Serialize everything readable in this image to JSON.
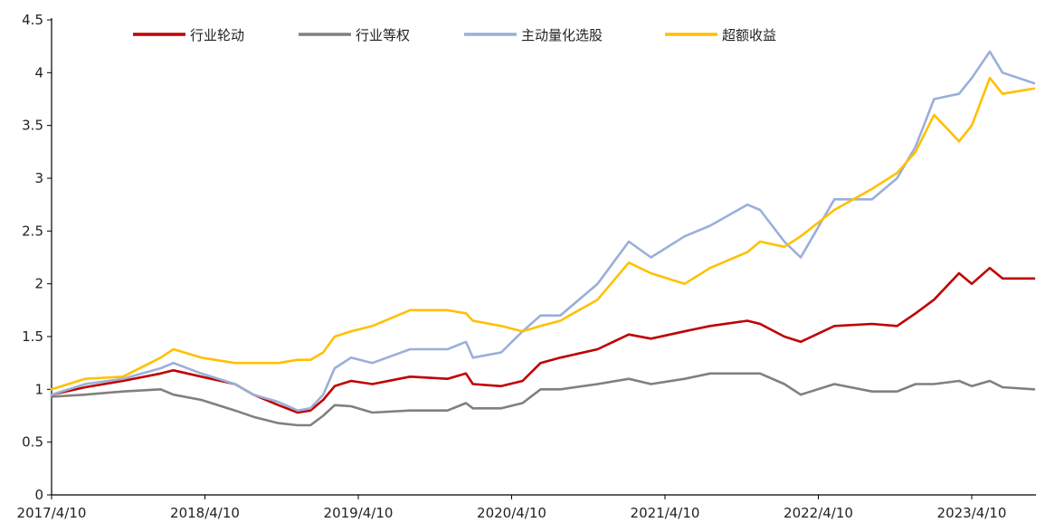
{
  "chart_data": {
    "type": "line",
    "title": "",
    "xlabel": "",
    "ylabel": "",
    "ylim": [
      0,
      4.5
    ],
    "y_ticks": [
      "0",
      "0.5",
      "1",
      "1.5",
      "2",
      "2.5",
      "3",
      "3.5",
      "4",
      "4.5"
    ],
    "x_tick_labels": [
      "2017/4/10",
      "2018/4/10",
      "2019/4/10",
      "2020/4/10",
      "2021/4/10",
      "2022/4/10",
      "2023/4/10"
    ],
    "x_range": [
      "2017-04-10",
      "2023-10-31"
    ],
    "grid": false,
    "legend_position": "top",
    "series": [
      {
        "name": "行业轮动",
        "color": "#C00000",
        "points": [
          [
            "2017-04-10",
            0.95
          ],
          [
            "2017-07-01",
            1.02
          ],
          [
            "2017-10-01",
            1.08
          ],
          [
            "2018-01-01",
            1.15
          ],
          [
            "2018-02-01",
            1.18
          ],
          [
            "2018-04-10",
            1.12
          ],
          [
            "2018-07-01",
            1.05
          ],
          [
            "2018-08-15",
            0.95
          ],
          [
            "2018-10-15",
            0.85
          ],
          [
            "2018-12-01",
            0.78
          ],
          [
            "2019-01-01",
            0.8
          ],
          [
            "2019-02-01",
            0.9
          ],
          [
            "2019-03-01",
            1.03
          ],
          [
            "2019-04-10",
            1.08
          ],
          [
            "2019-06-01",
            1.05
          ],
          [
            "2019-09-01",
            1.12
          ],
          [
            "2019-12-01",
            1.1
          ],
          [
            "2020-01-15",
            1.15
          ],
          [
            "2020-02-01",
            1.05
          ],
          [
            "2020-04-10",
            1.03
          ],
          [
            "2020-06-01",
            1.08
          ],
          [
            "2020-07-15",
            1.25
          ],
          [
            "2020-09-01",
            1.3
          ],
          [
            "2020-12-01",
            1.38
          ],
          [
            "2021-02-15",
            1.52
          ],
          [
            "2021-04-10",
            1.48
          ],
          [
            "2021-07-01",
            1.55
          ],
          [
            "2021-09-01",
            1.6
          ],
          [
            "2021-12-01",
            1.65
          ],
          [
            "2022-01-01",
            1.62
          ],
          [
            "2022-03-01",
            1.5
          ],
          [
            "2022-04-10",
            1.45
          ],
          [
            "2022-07-01",
            1.6
          ],
          [
            "2022-10-01",
            1.62
          ],
          [
            "2022-12-01",
            1.6
          ],
          [
            "2023-01-15",
            1.72
          ],
          [
            "2023-03-01",
            1.85
          ],
          [
            "2023-05-01",
            2.1
          ],
          [
            "2023-06-01",
            2.0
          ],
          [
            "2023-07-15",
            2.15
          ],
          [
            "2023-08-15",
            2.05
          ],
          [
            "2023-10-31",
            2.05
          ]
        ]
      },
      {
        "name": "行业等权",
        "color": "#808080",
        "points": [
          [
            "2017-04-10",
            0.93
          ],
          [
            "2017-07-01",
            0.95
          ],
          [
            "2017-10-01",
            0.98
          ],
          [
            "2018-01-01",
            1.0
          ],
          [
            "2018-02-01",
            0.95
          ],
          [
            "2018-04-10",
            0.9
          ],
          [
            "2018-07-01",
            0.8
          ],
          [
            "2018-08-15",
            0.74
          ],
          [
            "2018-10-15",
            0.68
          ],
          [
            "2018-12-01",
            0.66
          ],
          [
            "2019-01-01",
            0.66
          ],
          [
            "2019-02-01",
            0.75
          ],
          [
            "2019-03-01",
            0.85
          ],
          [
            "2019-04-10",
            0.84
          ],
          [
            "2019-06-01",
            0.78
          ],
          [
            "2019-09-01",
            0.8
          ],
          [
            "2019-12-01",
            0.8
          ],
          [
            "2020-01-15",
            0.87
          ],
          [
            "2020-02-01",
            0.82
          ],
          [
            "2020-04-10",
            0.82
          ],
          [
            "2020-06-01",
            0.87
          ],
          [
            "2020-07-15",
            1.0
          ],
          [
            "2020-09-01",
            1.0
          ],
          [
            "2020-12-01",
            1.05
          ],
          [
            "2021-02-15",
            1.1
          ],
          [
            "2021-04-10",
            1.05
          ],
          [
            "2021-07-01",
            1.1
          ],
          [
            "2021-09-01",
            1.15
          ],
          [
            "2021-12-01",
            1.15
          ],
          [
            "2022-01-01",
            1.15
          ],
          [
            "2022-03-01",
            1.05
          ],
          [
            "2022-04-10",
            0.95
          ],
          [
            "2022-07-01",
            1.05
          ],
          [
            "2022-10-01",
            0.98
          ],
          [
            "2022-12-01",
            0.98
          ],
          [
            "2023-01-15",
            1.05
          ],
          [
            "2023-03-01",
            1.05
          ],
          [
            "2023-05-01",
            1.08
          ],
          [
            "2023-06-01",
            1.03
          ],
          [
            "2023-07-15",
            1.08
          ],
          [
            "2023-08-15",
            1.02
          ],
          [
            "2023-10-31",
            1.0
          ]
        ]
      },
      {
        "name": "主动量化选股",
        "color": "#9AAFD9",
        "points": [
          [
            "2017-04-10",
            0.95
          ],
          [
            "2017-07-01",
            1.05
          ],
          [
            "2017-10-01",
            1.1
          ],
          [
            "2018-01-01",
            1.2
          ],
          [
            "2018-02-01",
            1.25
          ],
          [
            "2018-04-10",
            1.15
          ],
          [
            "2018-07-01",
            1.05
          ],
          [
            "2018-08-15",
            0.95
          ],
          [
            "2018-10-15",
            0.88
          ],
          [
            "2018-12-01",
            0.8
          ],
          [
            "2019-01-01",
            0.82
          ],
          [
            "2019-02-01",
            0.95
          ],
          [
            "2019-03-01",
            1.2
          ],
          [
            "2019-04-10",
            1.3
          ],
          [
            "2019-06-01",
            1.25
          ],
          [
            "2019-09-01",
            1.38
          ],
          [
            "2019-12-01",
            1.38
          ],
          [
            "2020-01-15",
            1.45
          ],
          [
            "2020-02-01",
            1.3
          ],
          [
            "2020-04-10",
            1.35
          ],
          [
            "2020-06-01",
            1.55
          ],
          [
            "2020-07-15",
            1.7
          ],
          [
            "2020-09-01",
            1.7
          ],
          [
            "2020-12-01",
            2.0
          ],
          [
            "2021-02-15",
            2.4
          ],
          [
            "2021-04-10",
            2.25
          ],
          [
            "2021-07-01",
            2.45
          ],
          [
            "2021-09-01",
            2.55
          ],
          [
            "2021-12-01",
            2.75
          ],
          [
            "2022-01-01",
            2.7
          ],
          [
            "2022-03-01",
            2.4
          ],
          [
            "2022-04-10",
            2.25
          ],
          [
            "2022-07-01",
            2.8
          ],
          [
            "2022-10-01",
            2.8
          ],
          [
            "2022-12-01",
            3.0
          ],
          [
            "2023-01-15",
            3.3
          ],
          [
            "2023-03-01",
            3.75
          ],
          [
            "2023-05-01",
            3.8
          ],
          [
            "2023-06-01",
            3.95
          ],
          [
            "2023-07-15",
            4.2
          ],
          [
            "2023-08-15",
            4.0
          ],
          [
            "2023-10-31",
            3.9
          ]
        ]
      },
      {
        "name": "超额收益",
        "color": "#FFC000",
        "points": [
          [
            "2017-04-10",
            1.0
          ],
          [
            "2017-07-01",
            1.1
          ],
          [
            "2017-10-01",
            1.12
          ],
          [
            "2018-01-01",
            1.3
          ],
          [
            "2018-02-01",
            1.38
          ],
          [
            "2018-04-10",
            1.3
          ],
          [
            "2018-07-01",
            1.25
          ],
          [
            "2018-08-15",
            1.25
          ],
          [
            "2018-10-15",
            1.25
          ],
          [
            "2018-12-01",
            1.28
          ],
          [
            "2019-01-01",
            1.28
          ],
          [
            "2019-02-01",
            1.35
          ],
          [
            "2019-03-01",
            1.5
          ],
          [
            "2019-04-10",
            1.55
          ],
          [
            "2019-06-01",
            1.6
          ],
          [
            "2019-09-01",
            1.75
          ],
          [
            "2019-12-01",
            1.75
          ],
          [
            "2020-01-15",
            1.72
          ],
          [
            "2020-02-01",
            1.65
          ],
          [
            "2020-04-10",
            1.6
          ],
          [
            "2020-06-01",
            1.55
          ],
          [
            "2020-07-15",
            1.6
          ],
          [
            "2020-09-01",
            1.65
          ],
          [
            "2020-12-01",
            1.85
          ],
          [
            "2021-02-15",
            2.2
          ],
          [
            "2021-04-10",
            2.1
          ],
          [
            "2021-07-01",
            2.0
          ],
          [
            "2021-09-01",
            2.15
          ],
          [
            "2021-12-01",
            2.3
          ],
          [
            "2022-01-01",
            2.4
          ],
          [
            "2022-03-01",
            2.35
          ],
          [
            "2022-04-10",
            2.45
          ],
          [
            "2022-07-01",
            2.7
          ],
          [
            "2022-10-01",
            2.9
          ],
          [
            "2022-12-01",
            3.05
          ],
          [
            "2023-01-15",
            3.25
          ],
          [
            "2023-03-01",
            3.6
          ],
          [
            "2023-05-01",
            3.35
          ],
          [
            "2023-06-01",
            3.5
          ],
          [
            "2023-07-15",
            3.95
          ],
          [
            "2023-08-15",
            3.8
          ],
          [
            "2023-10-31",
            3.85
          ]
        ]
      }
    ]
  }
}
